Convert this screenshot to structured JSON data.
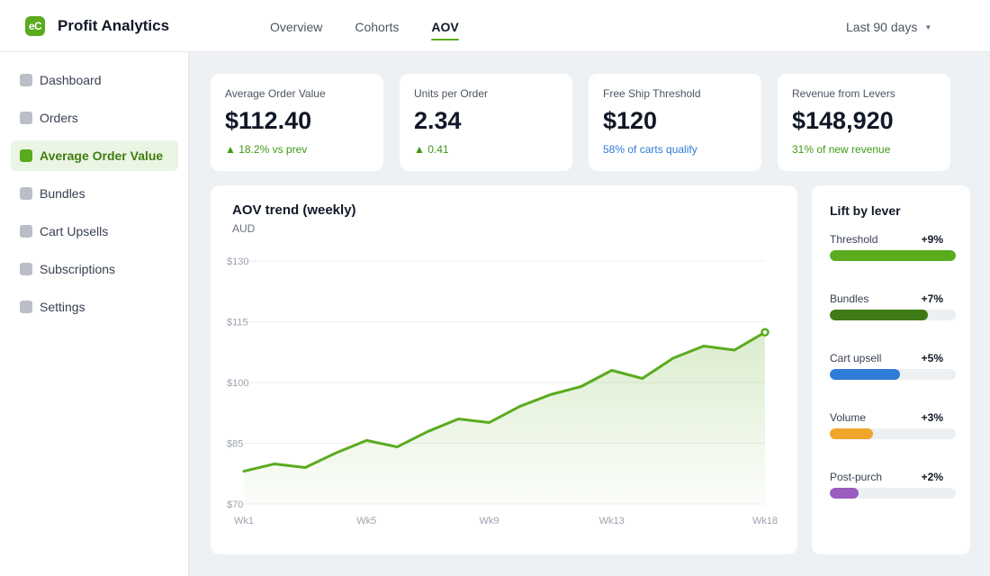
{
  "app": {
    "logo_text": "eC",
    "title": "Profit Analytics"
  },
  "nav_tabs": [
    {
      "label": "Overview",
      "active": false
    },
    {
      "label": "Cohorts",
      "active": false
    },
    {
      "label": "AOV",
      "active": true
    }
  ],
  "date_range": {
    "label": "Last 90 days",
    "caret": "▼"
  },
  "sidebar": {
    "items": [
      {
        "label": "Dashboard",
        "active": false
      },
      {
        "label": "Orders",
        "active": false
      },
      {
        "label": "Average Order Value",
        "active": true
      },
      {
        "label": "Bundles",
        "active": false
      },
      {
        "label": "Cart Upsells",
        "active": false
      },
      {
        "label": "Subscriptions",
        "active": false
      },
      {
        "label": "Settings",
        "active": false
      }
    ]
  },
  "kpis": [
    {
      "label": "Average Order Value",
      "value": "$112.40",
      "sub": "▲ 18.2% vs prev",
      "tone": "green"
    },
    {
      "label": "Units per Order",
      "value": "2.34",
      "sub": "▲ 0.41",
      "tone": "green"
    },
    {
      "label": "Free Ship Threshold",
      "value": "$120",
      "sub": "58% of carts qualify",
      "tone": "blue"
    },
    {
      "label": "Revenue from Levers",
      "value": "$148,920",
      "sub": "31% of new revenue",
      "tone": "green"
    }
  ],
  "chart_data": {
    "type": "area",
    "title": "AOV trend (weekly)",
    "subtitle": "AUD",
    "x": [
      "Wk1",
      "Wk2",
      "Wk3",
      "Wk4",
      "Wk5",
      "Wk6",
      "Wk7",
      "Wk8",
      "Wk9",
      "Wk10",
      "Wk11",
      "Wk12",
      "Wk13",
      "Wk14",
      "Wk15",
      "Wk16",
      "Wk17",
      "Wk18"
    ],
    "x_tick_labels": [
      "Wk1",
      "Wk5",
      "Wk9",
      "Wk13",
      "Wk18"
    ],
    "y_ticks": [
      70,
      85,
      100,
      115,
      130
    ],
    "y_tick_labels": [
      "$70",
      "$85",
      "$100",
      "$115",
      "$130"
    ],
    "ylim": [
      70,
      130
    ],
    "series": [
      {
        "values": [
          78.1,
          79.9,
          79.0,
          82.6,
          85.7,
          84.1,
          87.9,
          91.0,
          90.1,
          94.1,
          97.0,
          99.0,
          103.0,
          101.0,
          106.0,
          109.0,
          108.0,
          112.4
        ]
      }
    ],
    "grid": true,
    "line_color": "#5aab1e"
  },
  "levers": {
    "title": "Lift by lever",
    "items": [
      {
        "name": "Threshold",
        "value_label": "+9%",
        "fraction": 1.0,
        "color": "#5aab1e"
      },
      {
        "name": "Bundles",
        "value_label": "+7%",
        "fraction": 0.78,
        "color": "#3e7a15"
      },
      {
        "name": "Cart upsell",
        "value_label": "+5%",
        "fraction": 0.56,
        "color": "#2f7bd8"
      },
      {
        "name": "Volume",
        "value_label": "+3%",
        "fraction": 0.34,
        "color": "#f0a52b"
      },
      {
        "name": "Post-purch",
        "value_label": "+2%",
        "fraction": 0.23,
        "color": "#9b5cc0"
      }
    ]
  }
}
